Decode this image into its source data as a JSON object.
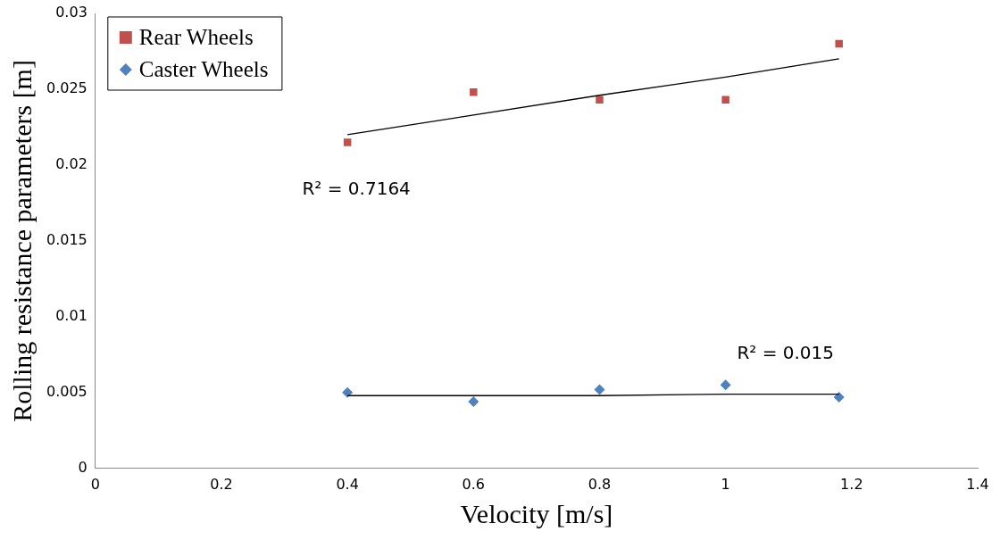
{
  "chart_data": {
    "type": "scatter",
    "xlabel": "Velocity [m/s]",
    "ylabel": "Rolling resistance parameters [m]",
    "x": [
      0.4,
      0.6,
      0.8,
      1.0,
      1.18
    ],
    "series": [
      {
        "name": "Rear Wheels",
        "color": "#c0504d",
        "marker": "square",
        "values": [
          0.0215,
          0.0248,
          0.0243,
          0.0243,
          0.028
        ]
      },
      {
        "name": "Caster Wheels",
        "color": "#4f81bd",
        "marker": "diamond",
        "values": [
          0.005,
          0.0044,
          0.0052,
          0.0055,
          0.0047
        ]
      },
      {
        "type": "line",
        "color": "#000000",
        "marker": "none",
        "values": [
          0.022,
          0.0233,
          0.0246,
          0.0258,
          0.027
        ]
      },
      {
        "type": "line",
        "color": "#000000",
        "marker": "none",
        "values": [
          0.0048,
          0.0048,
          0.0048,
          0.0049,
          0.0049
        ]
      }
    ],
    "xlim": [
      0,
      1.4
    ],
    "xticks": [
      0,
      0.2,
      0.4,
      0.6,
      0.8,
      1,
      1.2,
      1.4
    ],
    "ylim": [
      0,
      0.03
    ],
    "yticks": [
      0,
      0.005,
      0.01,
      0.015,
      0.02,
      0.025,
      0.03
    ],
    "annotations": [
      "R² = 0.7164",
      "R² = 0.015"
    ],
    "grid": false,
    "legend": "top left"
  }
}
